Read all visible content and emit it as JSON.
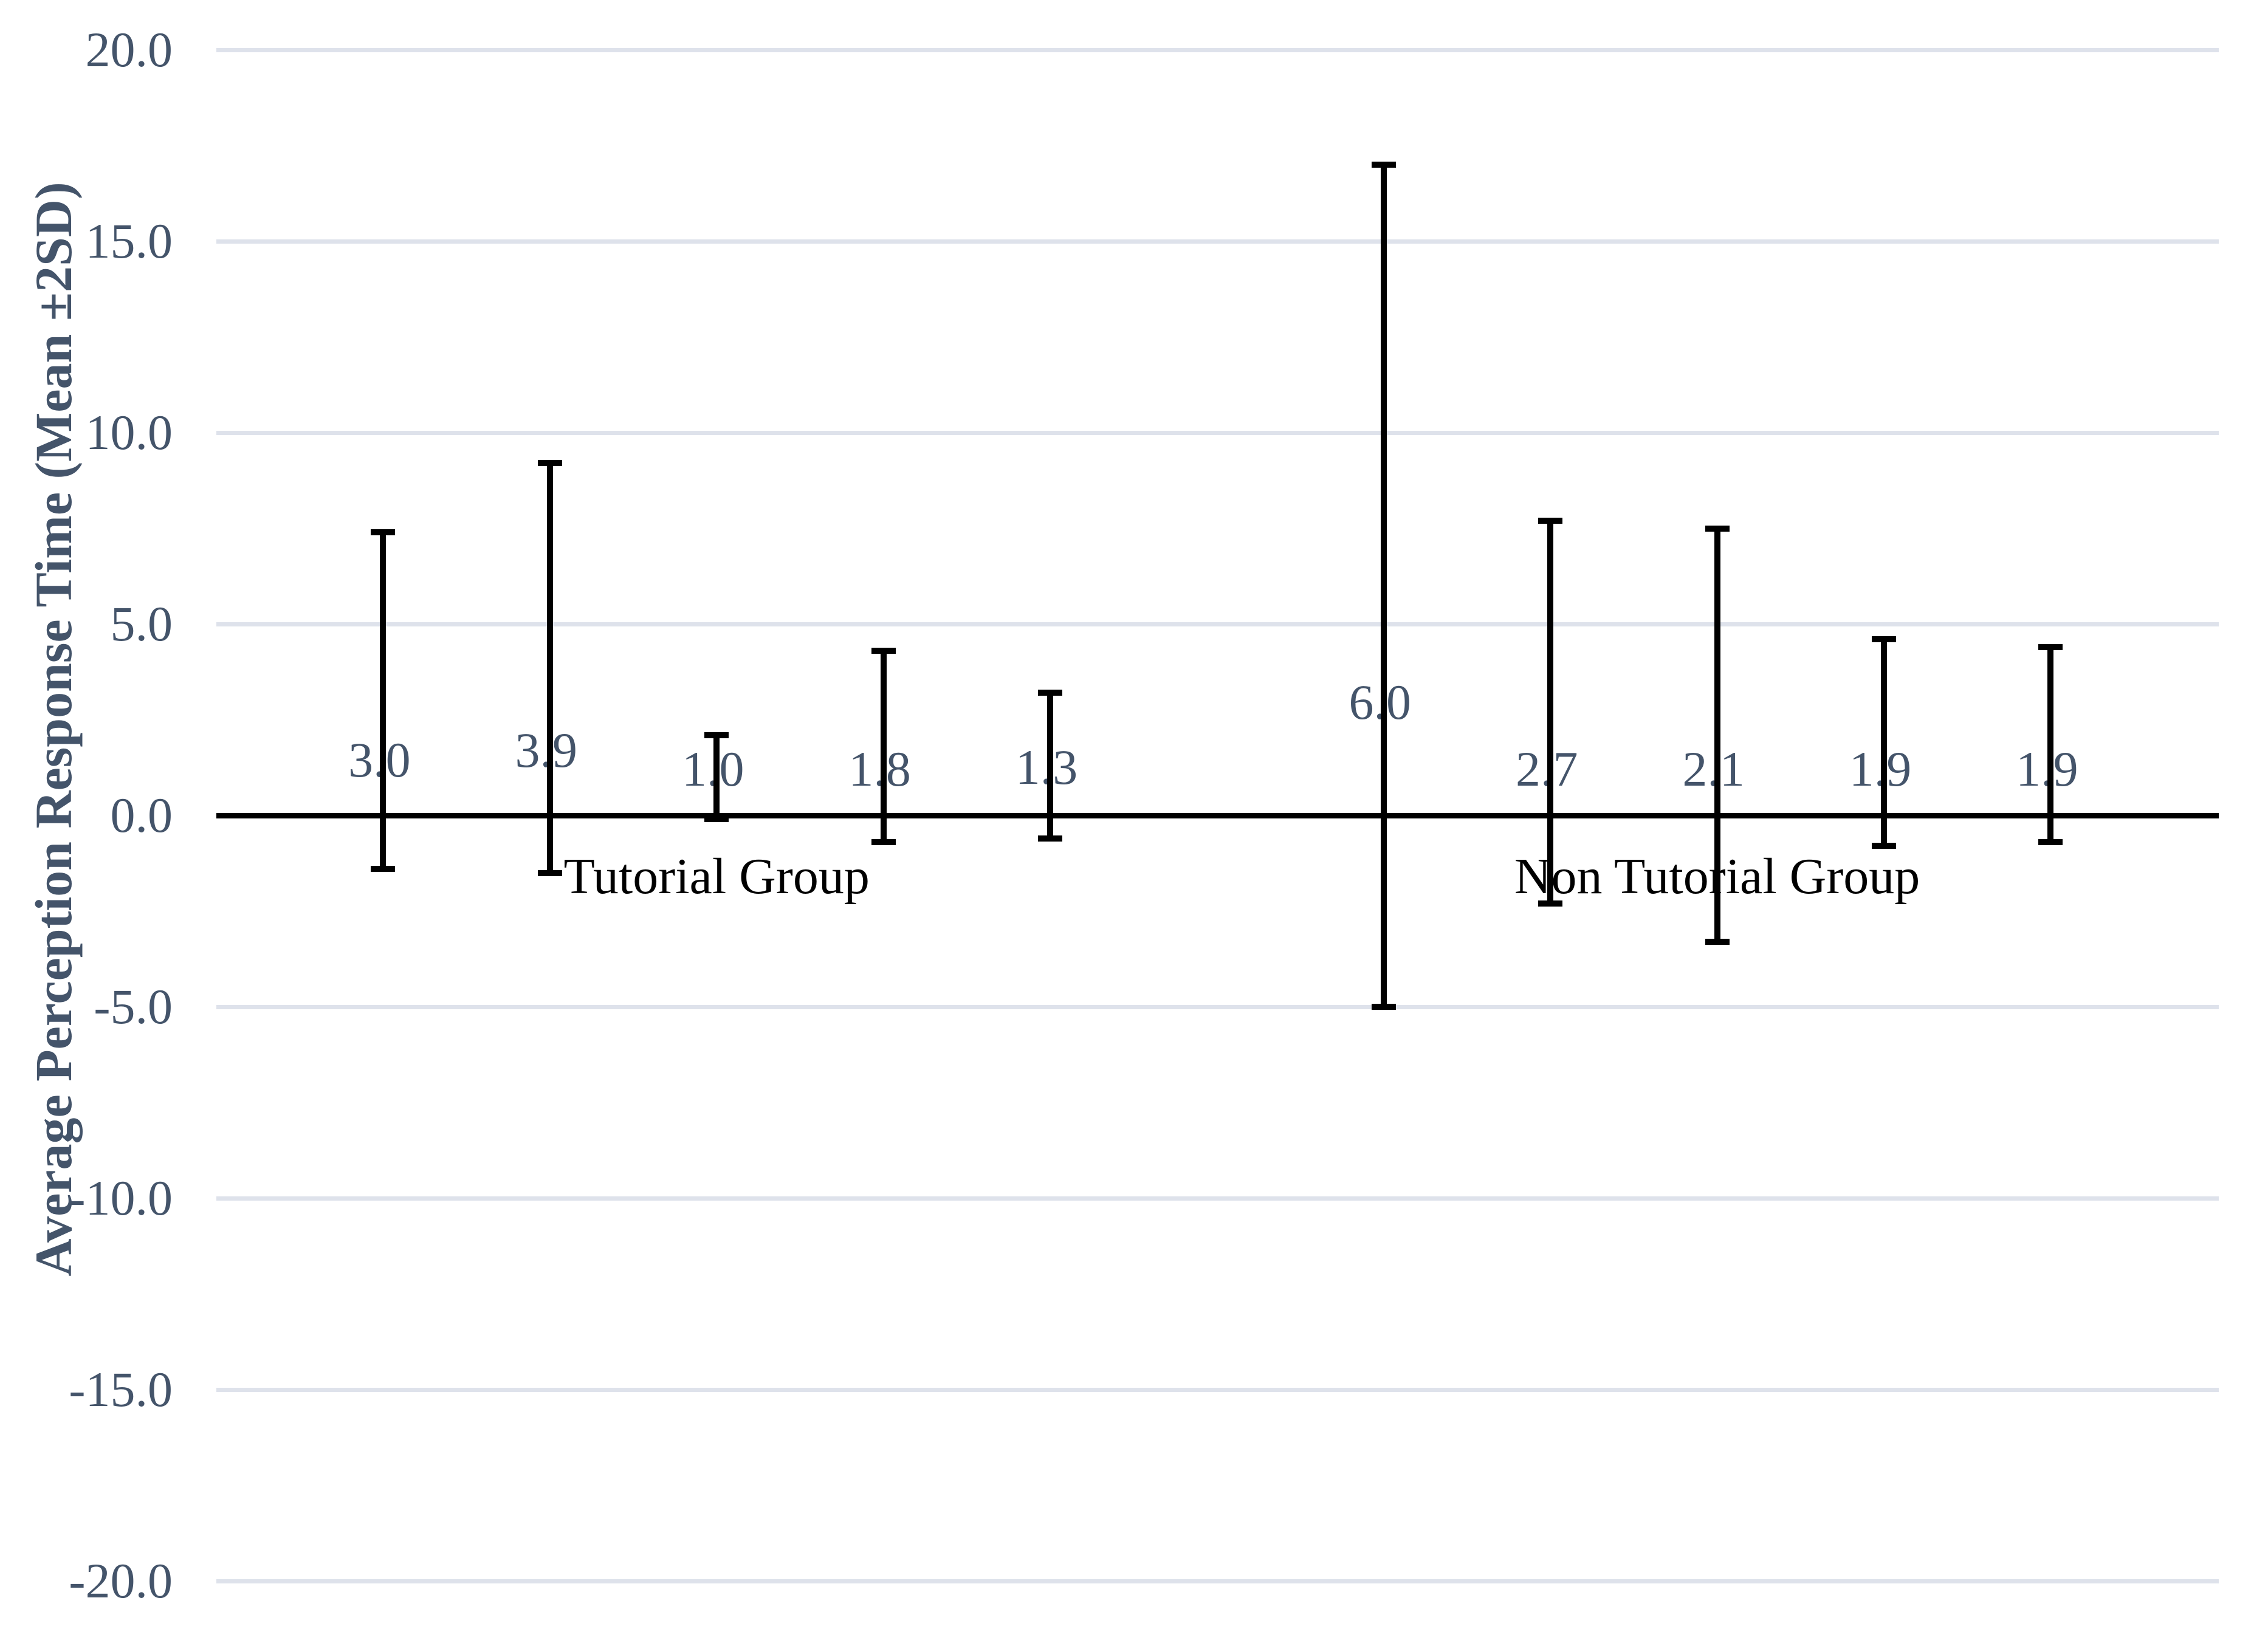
{
  "chart_data": {
    "type": "scatter",
    "subtype": "mean-with-error-bars",
    "title": "",
    "xlabel": "",
    "ylabel": "Average Perception Response Time (Mean ±2SD)",
    "ylim": [
      -20,
      20
    ],
    "ytick_step": 5,
    "ytick_values": [
      20,
      15,
      10,
      5,
      0,
      -5,
      -10,
      -15,
      -20
    ],
    "ytick_labels": [
      "20.0",
      "15.0",
      "10.0",
      "5.0",
      "0.0",
      "-5.0",
      "-10.0",
      "-15.0",
      "-20.0"
    ],
    "grid": "horizontal",
    "legend": "none",
    "marker": "none",
    "categories": [
      "Tutorial Group",
      "Non Tutorial Group"
    ],
    "groups": [
      {
        "label": "Tutorial Group",
        "center_slot": 3,
        "label_y": -1.6
      },
      {
        "label": "Non Tutorial Group",
        "center_slot": 9,
        "label_y": -1.6
      }
    ],
    "points": [
      {
        "group": "Tutorial Group",
        "slot": 1,
        "mean": 3.0,
        "label": "3.0",
        "lower": -1.4,
        "upper": 7.4,
        "label_y": 1.45
      },
      {
        "group": "Tutorial Group",
        "slot": 2,
        "mean": 3.9,
        "label": "3.9",
        "lower": -1.5,
        "upper": 9.2,
        "label_y": 1.7
      },
      {
        "group": "Tutorial Group",
        "slot": 3,
        "mean": 1.0,
        "label": "1.0",
        "lower": -0.1,
        "upper": 2.1,
        "label_y": 1.2
      },
      {
        "group": "Tutorial Group",
        "slot": 4,
        "mean": 1.8,
        "label": "1.8",
        "lower": -0.7,
        "upper": 4.3,
        "label_y": 1.2
      },
      {
        "group": "Tutorial Group",
        "slot": 5,
        "mean": 1.3,
        "label": "1.3",
        "lower": -0.6,
        "upper": 3.2,
        "label_y": 1.25
      },
      {
        "group": "Non Tutorial Group",
        "slot": 7,
        "mean": 6.0,
        "label": "6.0",
        "lower": -5.0,
        "upper": 17.0,
        "label_y": 2.95
      },
      {
        "group": "Non Tutorial Group",
        "slot": 8,
        "mean": 2.7,
        "label": "2.7",
        "lower": -2.3,
        "upper": 7.7,
        "label_y": 1.2
      },
      {
        "group": "Non Tutorial Group",
        "slot": 9,
        "mean": 2.1,
        "label": "2.1",
        "lower": -3.3,
        "upper": 7.5,
        "label_y": 1.2
      },
      {
        "group": "Non Tutorial Group",
        "slot": 10,
        "mean": 1.9,
        "label": "1.9",
        "lower": -0.8,
        "upper": 4.6,
        "label_y": 1.2
      },
      {
        "group": "Non Tutorial Group",
        "slot": 11,
        "mean": 1.9,
        "label": "1.9",
        "lower": -0.7,
        "upper": 4.4,
        "label_y": 1.2
      }
    ],
    "colors": {
      "background": "#ffffff",
      "error_bar": "#000000",
      "axis_line": "#000000",
      "gridline": "#dee2eb",
      "tick_label": "#44546A",
      "data_label": "#44546A",
      "group_label": "#000000",
      "axis_title": "#44546A"
    }
  }
}
